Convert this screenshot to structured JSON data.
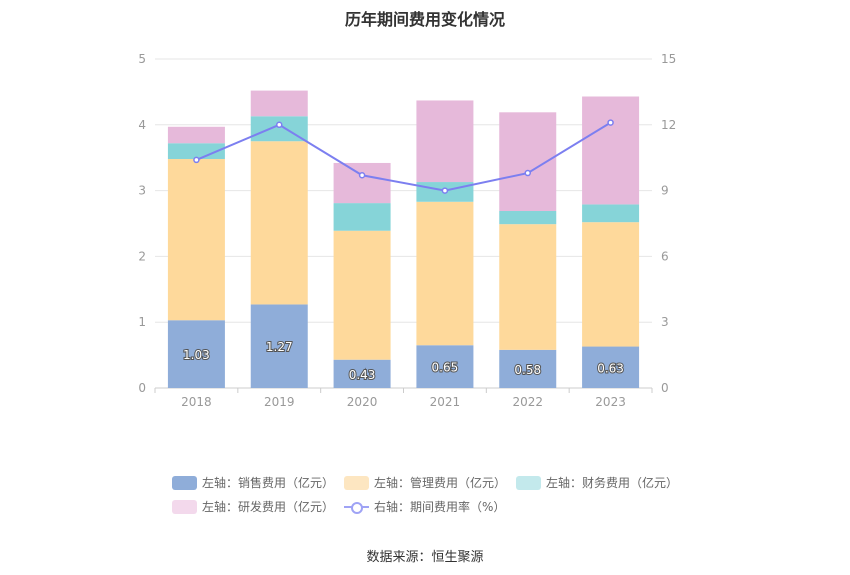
{
  "chart_data": {
    "type": "bar",
    "title": "历年期间费用变化情况",
    "categories": [
      "2018",
      "2019",
      "2020",
      "2021",
      "2022",
      "2023"
    ],
    "left_axis": {
      "ylim": [
        0,
        5
      ],
      "ticks": [
        "0",
        "1",
        "2",
        "3",
        "4",
        "5"
      ]
    },
    "right_axis": {
      "ylim": [
        0,
        15
      ],
      "ticks": [
        "0",
        "3",
        "6",
        "9",
        "12",
        "15"
      ]
    },
    "series": [
      {
        "name": "左轴：销售费用（亿元）",
        "type": "stacked-bar",
        "axis": "left",
        "color": "#8fadd9",
        "values": [
          1.03,
          1.27,
          0.43,
          0.65,
          0.58,
          0.63
        ],
        "labels": [
          "1.03",
          "1.27",
          "0.43",
          "0.65",
          "0.58",
          "0.63"
        ]
      },
      {
        "name": "左轴：管理费用（亿元）",
        "type": "stacked-bar",
        "axis": "left",
        "color": "#fed99b",
        "values": [
          2.45,
          2.48,
          1.96,
          2.18,
          1.91,
          1.89
        ]
      },
      {
        "name": "左轴：财务费用（亿元）",
        "type": "stacked-bar",
        "axis": "left",
        "color": "#86d4d8",
        "values": [
          0.24,
          0.38,
          0.42,
          0.3,
          0.2,
          0.27
        ]
      },
      {
        "name": "左轴：研发费用（亿元）",
        "type": "stacked-bar",
        "axis": "left",
        "color": "#e6b9da",
        "values": [
          0.25,
          0.39,
          0.61,
          1.24,
          1.5,
          1.64
        ]
      },
      {
        "name": "右轴：期间费用率（%）",
        "type": "line",
        "axis": "right",
        "color": "#7c7ff0",
        "values": [
          10.4,
          12.0,
          9.7,
          9.0,
          9.8,
          12.1
        ]
      }
    ],
    "legend_position": "bottom",
    "grid": true
  },
  "legend": {
    "sales": "左轴：销售费用（亿元）",
    "admin": "左轴：管理费用（亿元）",
    "finance": "左轴：财务费用（亿元）",
    "rd": "左轴：研发费用（亿元）",
    "rate": "右轴：期间费用率（%）"
  },
  "legend_colors": {
    "sales": "#8fadd9",
    "admin": "#fde6c1",
    "finance": "#c3e9ec",
    "rd": "#f3d9ec",
    "rate": "#9fa3f5"
  },
  "source": "数据来源：恒生聚源"
}
